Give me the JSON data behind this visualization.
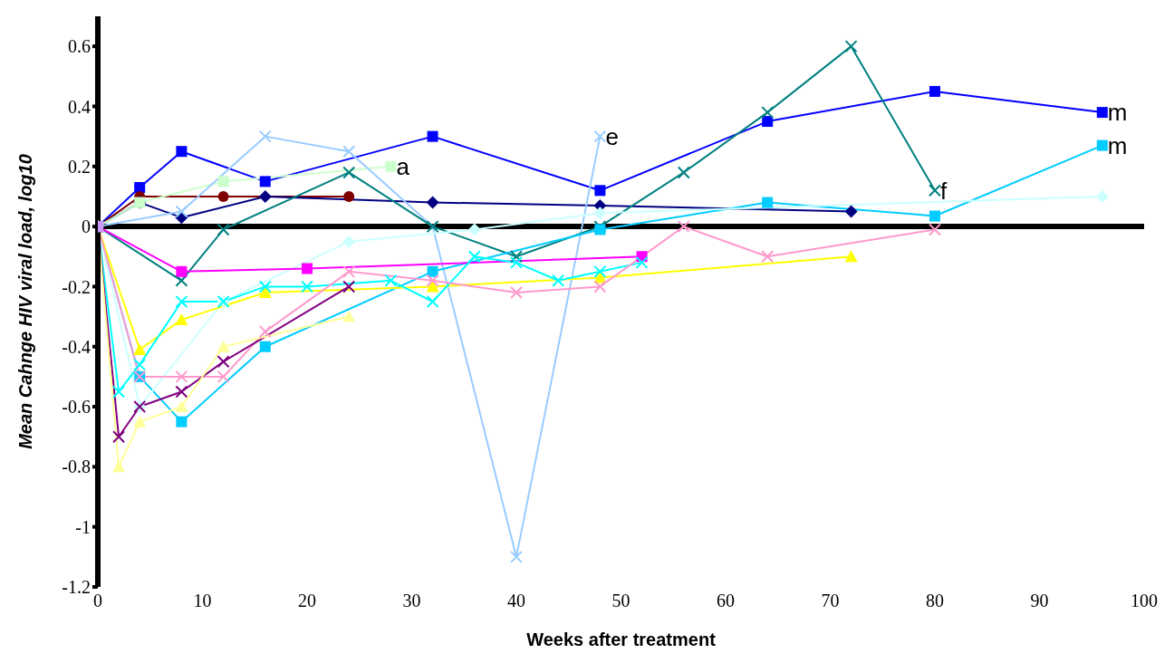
{
  "chart_data": {
    "type": "line",
    "xlabel": "Weeks after treatment",
    "ylabel": "Mean Cahnge HIV viral load, log10",
    "xlim": [
      0,
      100
    ],
    "xticks": [
      0,
      10,
      20,
      30,
      40,
      50,
      60,
      70,
      80,
      90,
      100
    ],
    "ylim": [
      -1.2,
      0.7
    ],
    "yticks": [
      -1.2,
      -1,
      -0.8,
      -0.6,
      -0.4,
      -0.2,
      0,
      0.2,
      0.4,
      0.6
    ],
    "line_style": "solid",
    "ref_lines": [
      {
        "axis": "y",
        "value": 0,
        "color": "#000000"
      }
    ],
    "annotations": [
      {
        "text": "a",
        "x": 28,
        "y": 0.2
      },
      {
        "text": "e",
        "x": 48,
        "y": 0.3
      },
      {
        "text": "f",
        "x": 80,
        "y": 0.12
      },
      {
        "text": "m",
        "x": 96,
        "y": 0.38
      },
      {
        "text": "m",
        "x": 96,
        "y": 0.27
      }
    ],
    "series": [
      {
        "color": "#0000ff",
        "marker": "square",
        "x": [
          0,
          4,
          8,
          16,
          32,
          48,
          64,
          80,
          96
        ],
        "values": [
          0,
          0.13,
          0.25,
          0.15,
          0.3,
          0.12,
          0.35,
          0.45,
          0.38
        ]
      },
      {
        "color": "#800000",
        "marker": "circle",
        "x": [
          0,
          4,
          12,
          24
        ],
        "values": [
          0,
          0.1,
          0.1,
          0.1
        ]
      },
      {
        "color": "#000080",
        "marker": "diamond",
        "x": [
          0,
          4,
          8,
          16,
          32,
          48,
          72
        ],
        "values": [
          0,
          0.08,
          0.03,
          0.1,
          0.08,
          0.07,
          0.05
        ]
      },
      {
        "color": "#ccffcc",
        "marker": "square",
        "x": [
          0,
          4,
          12,
          28
        ],
        "values": [
          0,
          0.08,
          0.15,
          0.2
        ]
      },
      {
        "color": "#99ccff",
        "marker": "cross",
        "x": [
          0,
          8,
          16,
          24,
          32,
          40,
          48
        ],
        "values": [
          0,
          0.05,
          0.3,
          0.25,
          0,
          -1.1,
          0.3
        ]
      },
      {
        "color": "#008080",
        "marker": "cross",
        "x": [
          0,
          8,
          12,
          24,
          32,
          40,
          48,
          56,
          64,
          72,
          80
        ],
        "values": [
          0,
          -0.18,
          -0.01,
          0.18,
          0,
          -0.1,
          0,
          0.18,
          0.38,
          0.6,
          0.12
        ]
      },
      {
        "color": "#00ccff",
        "marker": "square",
        "x": [
          0,
          4,
          8,
          16,
          32,
          48,
          64,
          80,
          96
        ],
        "values": [
          0,
          -0.5,
          -0.65,
          -0.4,
          -0.15,
          -0.01,
          0.08,
          0.035,
          0.27
        ]
      },
      {
        "color": "#ccffff",
        "marker": "diamond",
        "x": [
          0,
          4,
          12,
          24,
          36,
          48,
          96
        ],
        "values": [
          0,
          -0.6,
          -0.25,
          -0.05,
          -0.01,
          0.045,
          0.1
        ]
      },
      {
        "color": "#ff00ff",
        "marker": "square",
        "x": [
          0,
          8,
          20,
          52
        ],
        "values": [
          0,
          -0.15,
          -0.14,
          -0.1
        ]
      },
      {
        "color": "#ffff00",
        "marker": "triangle",
        "x": [
          0,
          4,
          8,
          16,
          32,
          48,
          72
        ],
        "values": [
          0,
          -0.41,
          -0.31,
          -0.22,
          -0.2,
          -0.17,
          -0.1
        ]
      },
      {
        "color": "#00ffff",
        "marker": "cross",
        "x": [
          0,
          2,
          4,
          8,
          12,
          16,
          20,
          28,
          32,
          36,
          40,
          44,
          48,
          52
        ],
        "values": [
          0,
          -0.55,
          -0.46,
          -0.25,
          -0.25,
          -0.2,
          -0.2,
          -0.18,
          -0.25,
          -0.1,
          -0.12,
          -0.18,
          -0.15,
          -0.12
        ]
      },
      {
        "color": "#ff99cc",
        "marker": "cross",
        "x": [
          0,
          4,
          8,
          12,
          16,
          24,
          32,
          40,
          48,
          56,
          64,
          80
        ],
        "values": [
          0,
          -0.5,
          -0.5,
          -0.5,
          -0.35,
          -0.15,
          -0.18,
          -0.22,
          -0.2,
          0,
          -0.1,
          -0.01
        ]
      },
      {
        "color": "#800080",
        "marker": "cross",
        "x": [
          0,
          2,
          4,
          8,
          12,
          24
        ],
        "values": [
          0,
          -0.7,
          -0.6,
          -0.55,
          -0.45,
          -0.2
        ]
      },
      {
        "color": "#ffff99",
        "marker": "triangle",
        "x": [
          0,
          2,
          4,
          8,
          12,
          24
        ],
        "values": [
          0,
          -0.8,
          -0.65,
          -0.6,
          -0.4,
          -0.3
        ]
      },
      {
        "color": "#cc99ff",
        "marker": "square",
        "x": [
          0
        ],
        "values": [
          0
        ]
      }
    ]
  }
}
